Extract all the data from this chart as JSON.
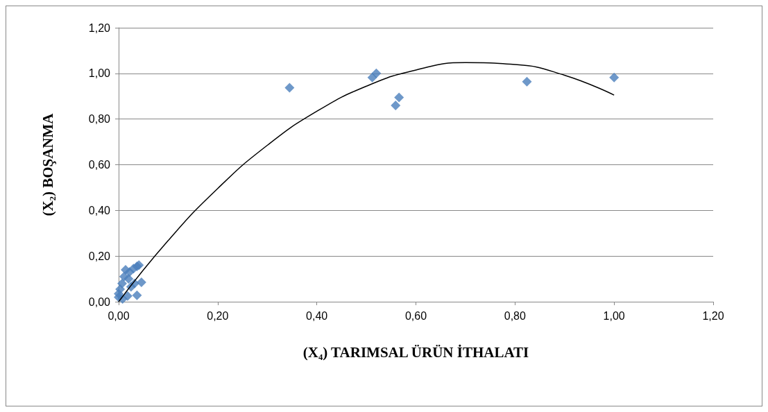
{
  "chart_data": {
    "type": "scatter",
    "xlabel": "(X₄) TARIMSAL ÜRÜN İTHALATI",
    "ylabel": "(X₂) BOŞANMA",
    "marker": "diamond",
    "grid": "y",
    "xlim": [
      0,
      1.2
    ],
    "ylim": [
      0,
      1.2
    ],
    "xticks": [
      {
        "value": 0,
        "label": "0,00"
      },
      {
        "value": 0.2,
        "label": "0,20"
      },
      {
        "value": 0.4,
        "label": "0,40"
      },
      {
        "value": 0.6,
        "label": "0,60"
      },
      {
        "value": 0.8,
        "label": "0,80"
      },
      {
        "value": 1,
        "label": "1,00"
      },
      {
        "value": 1.2,
        "label": "1,20"
      }
    ],
    "yticks": [
      {
        "value": 0,
        "label": "0,00"
      },
      {
        "value": 0.2,
        "label": "0,20"
      },
      {
        "value": 0.4,
        "label": "0,40"
      },
      {
        "value": 0.6,
        "label": "0,60"
      },
      {
        "value": 0.8,
        "label": "0,80"
      },
      {
        "value": 1,
        "label": "1,00"
      },
      {
        "value": 1.2,
        "label": "1,20"
      }
    ],
    "series": [
      {
        "color": "#4a7ebb",
        "x": [
          0.345,
          0.512,
          0.52,
          0.559,
          0.566,
          0.824,
          1.0,
          0,
          0,
          0.003,
          0.007,
          0.011,
          0.014,
          0.022,
          0.03,
          0.037,
          0.041,
          0.046,
          0.037,
          0.018,
          0.025,
          0.008,
          0.02,
          0.032
        ],
        "values": [
          0.937,
          0.982,
          1.0,
          0.86,
          0.895,
          0.964,
          0.982,
          0.02,
          0.035,
          0.055,
          0.08,
          0.11,
          0.14,
          0.13,
          0.145,
          0.155,
          0.16,
          0.085,
          0.028,
          0.025,
          0.065,
          0.012,
          0.1,
          0.08
        ]
      },
      {
        "type": "line",
        "color": "#000000",
        "marker": "none",
        "x": [
          0,
          0.1,
          0.2,
          0.3,
          0.4,
          0.5,
          0.6,
          0.7,
          0.8,
          0.9,
          1.0
        ],
        "values": [
          0,
          0.268,
          0.496,
          0.685,
          0.834,
          0.944,
          1.015,
          1.047,
          1.039,
          0.992,
          0.905
        ]
      }
    ]
  }
}
